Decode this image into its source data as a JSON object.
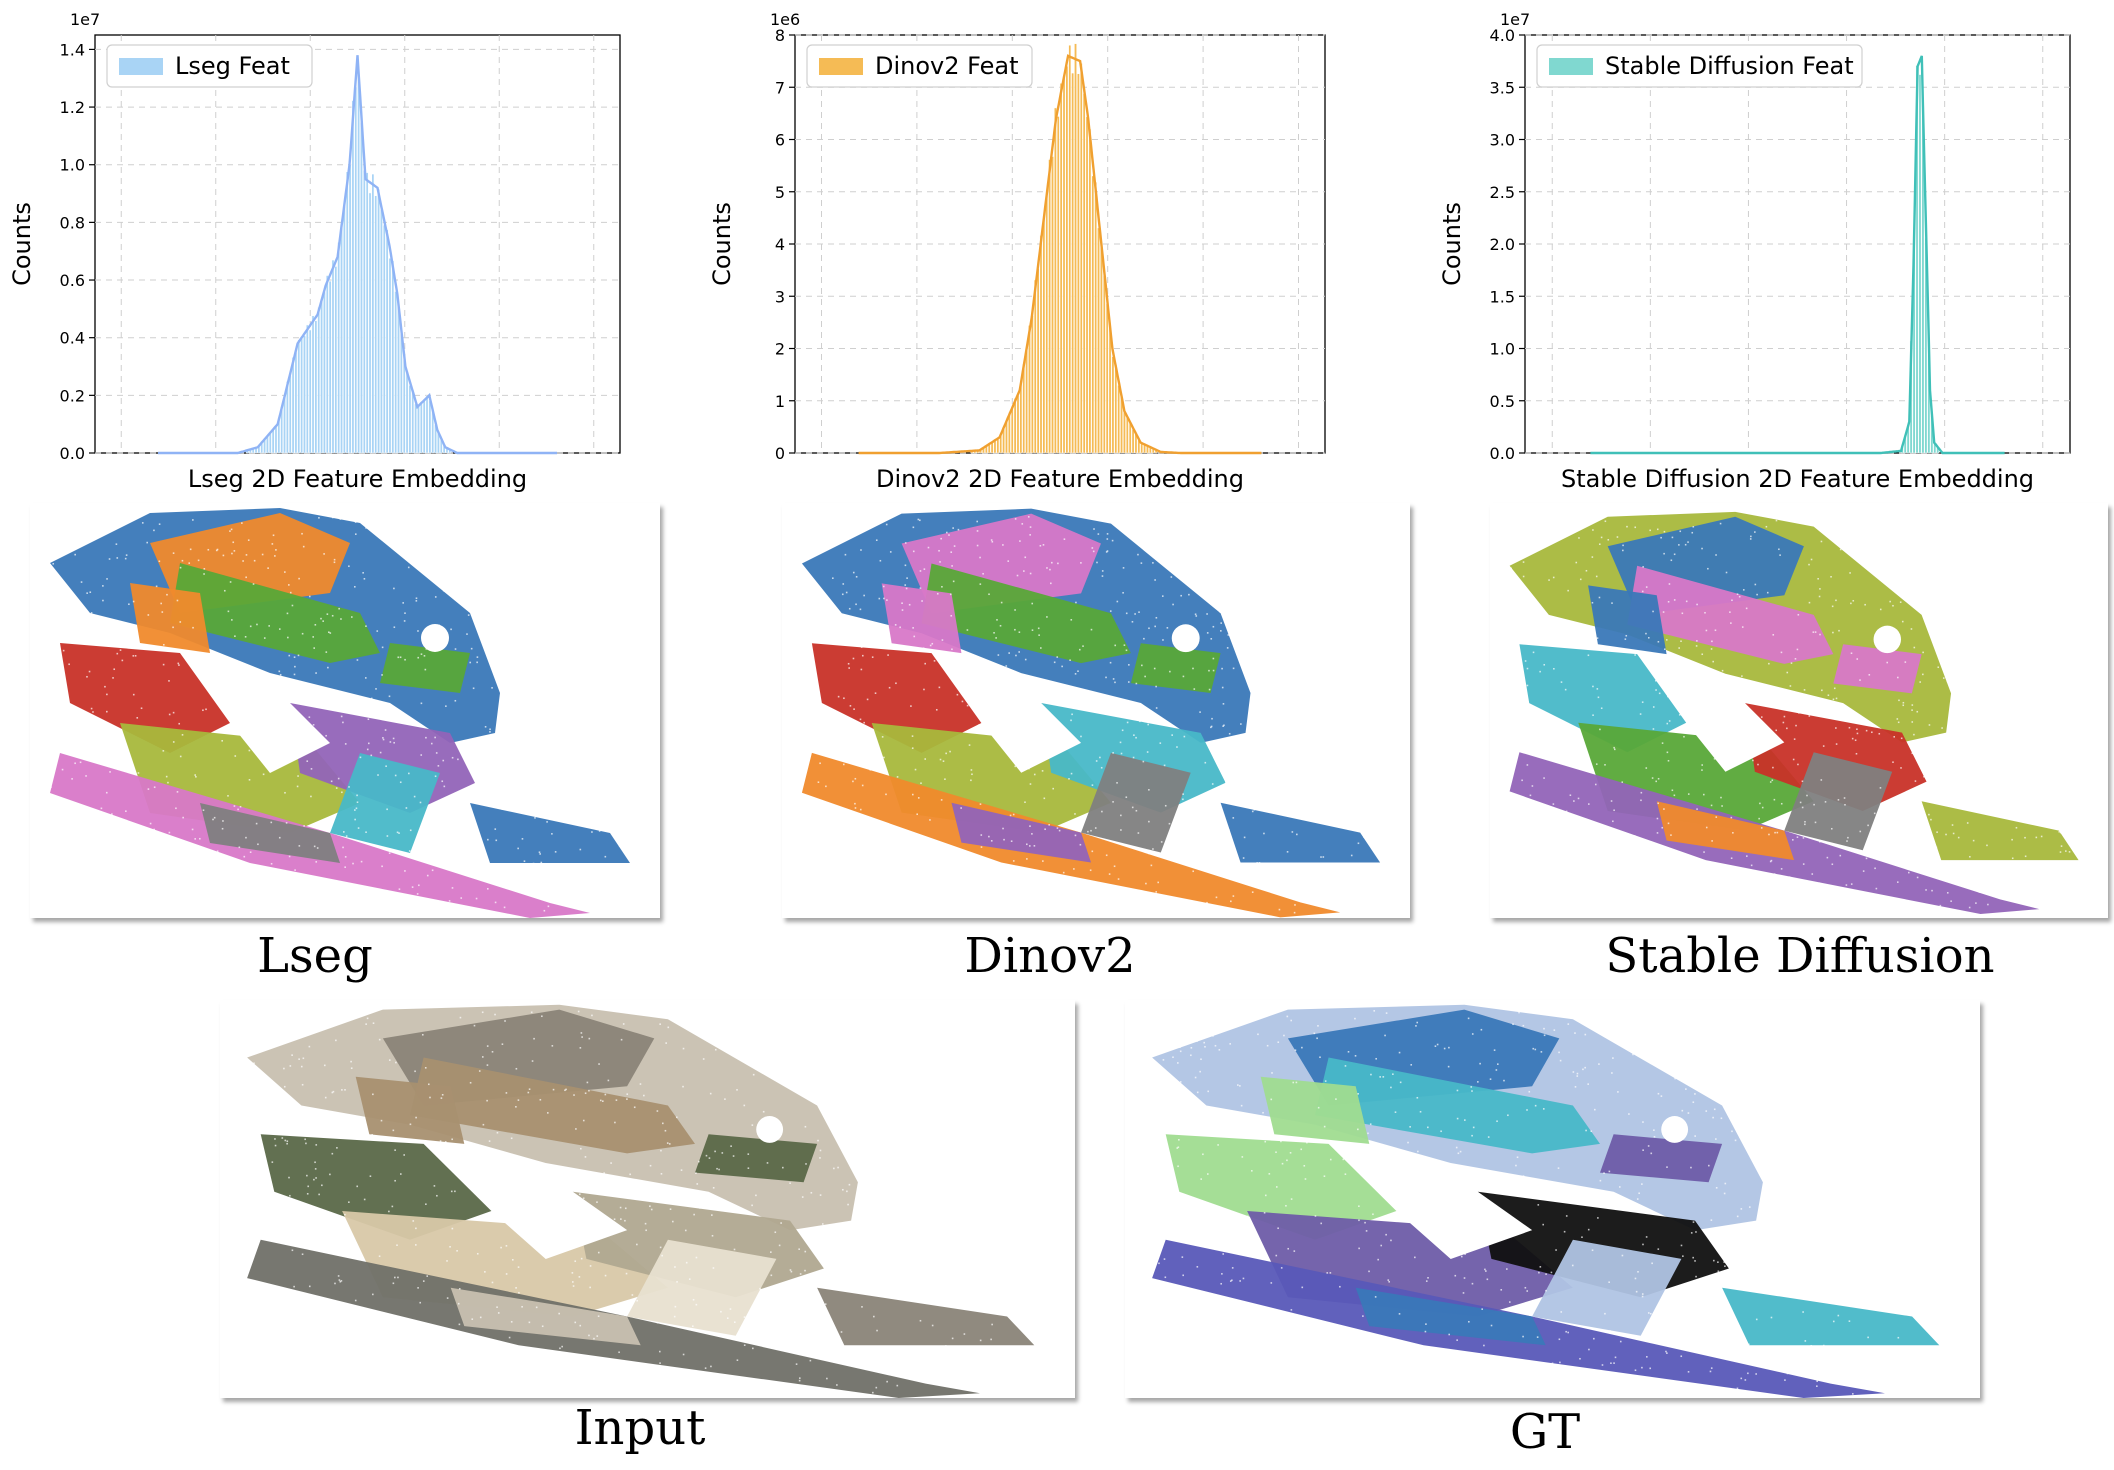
{
  "charts": [
    {
      "type": "area",
      "multiplier": "1e7",
      "ylabel": "Counts",
      "xlabel": "Lseg 2D Feature Embedding",
      "legend": "Lseg Feat",
      "legend_placement": "top-left",
      "grid": true,
      "color": "#8fb3f5",
      "bar_color": "#a9d4f5",
      "ylim": [
        0,
        1.45
      ],
      "yticks": [
        "0.0",
        "0.2",
        "0.4",
        "0.6",
        "0.8",
        "1.0",
        "1.2",
        "1.4"
      ],
      "ytick_values": [
        0,
        0.2,
        0.4,
        0.6,
        0.8,
        1.0,
        1.2,
        1.4
      ],
      "x": [
        0.0,
        0.1,
        0.2,
        0.25,
        0.3,
        0.35,
        0.4,
        0.42,
        0.45,
        0.48,
        0.5,
        0.52,
        0.55,
        0.58,
        0.6,
        0.62,
        0.65,
        0.68,
        0.7,
        0.72,
        0.75,
        0.8,
        0.9,
        1.0
      ],
      "y": [
        0.0,
        0.0,
        0.0,
        0.02,
        0.1,
        0.38,
        0.48,
        0.58,
        0.68,
        1.0,
        1.38,
        0.95,
        0.92,
        0.72,
        0.55,
        0.3,
        0.16,
        0.2,
        0.08,
        0.02,
        0.0,
        0.0,
        0.0,
        0.0
      ]
    },
    {
      "type": "area",
      "multiplier": "1e6",
      "ylabel": "Counts",
      "xlabel": "Dinov2 2D Feature Embedding",
      "legend": "Dinov2 Feat",
      "legend_placement": "top-left",
      "grid": true,
      "color": "#f0a030",
      "bar_color": "#f5bb55",
      "ylim": [
        0,
        8
      ],
      "yticks": [
        "0",
        "1",
        "2",
        "3",
        "4",
        "5",
        "6",
        "7",
        "8"
      ],
      "ytick_values": [
        0,
        1,
        2,
        3,
        4,
        5,
        6,
        7,
        8
      ],
      "x": [
        0.0,
        0.2,
        0.3,
        0.35,
        0.4,
        0.43,
        0.46,
        0.49,
        0.52,
        0.55,
        0.57,
        0.6,
        0.63,
        0.66,
        0.7,
        0.75,
        0.8,
        1.0
      ],
      "y": [
        0.0,
        0.0,
        0.05,
        0.3,
        1.2,
        2.6,
        4.5,
        6.4,
        7.6,
        7.5,
        6.4,
        4.2,
        2.0,
        0.8,
        0.2,
        0.02,
        0.0,
        0.0
      ]
    },
    {
      "type": "area",
      "multiplier": "1e7",
      "ylabel": "Counts",
      "xlabel": "Stable Diffusion 2D Feature Embedding",
      "legend": "Stable Diffusion Feat",
      "legend_placement": "top-left",
      "grid": true,
      "color": "#40c0b8",
      "bar_color": "#80d8d0",
      "ylim": [
        0,
        4.0
      ],
      "yticks": [
        "0.0",
        "0.5",
        "1.0",
        "1.5",
        "2.0",
        "2.5",
        "3.0",
        "3.5",
        "4.0"
      ],
      "ytick_values": [
        0,
        0.5,
        1.0,
        1.5,
        2.0,
        2.5,
        3.0,
        3.5,
        4.0
      ],
      "x": [
        0.0,
        0.7,
        0.75,
        0.77,
        0.78,
        0.79,
        0.8,
        0.81,
        0.82,
        0.83,
        0.85,
        0.9,
        1.0
      ],
      "y": [
        0.0,
        0.0,
        0.02,
        0.3,
        1.8,
        3.7,
        3.8,
        2.2,
        0.6,
        0.1,
        0.0,
        0.0,
        0.0
      ]
    }
  ],
  "captions": {
    "lseg": "Lseg",
    "dinov2": "Dinov2",
    "sd": "Stable Diffusion",
    "input": "Input",
    "gt": "GT"
  },
  "panels": {
    "lseg": [
      "#3a78b8",
      "#f08a2c",
      "#58a838",
      "#c83228",
      "#a8b83c",
      "#9264b8",
      "#d878c8",
      "#48b8c8",
      "#808080"
    ],
    "dinov2": [
      "#3a78b8",
      "#d878c8",
      "#58a838",
      "#c83228",
      "#a8b83c",
      "#48b8c8",
      "#f08a2c",
      "#808080",
      "#9264b8"
    ],
    "sd": [
      "#a8b83c",
      "#3a78b8",
      "#d878c8",
      "#48b8c8",
      "#58a838",
      "#c83228",
      "#9264b8",
      "#808080",
      "#f08a2c"
    ],
    "input": [
      "#c8c0b0",
      "#8a8478",
      "#a89070",
      "#5a6848",
      "#d8c8a8",
      "#b0a890",
      "#707068",
      "#e8e0d0"
    ],
    "gt": [
      "#b0c4e4",
      "#3a78b8",
      "#48b8c8",
      "#a0dc90",
      "#6e5ca8",
      "#101010",
      "#5858b8"
    ]
  }
}
